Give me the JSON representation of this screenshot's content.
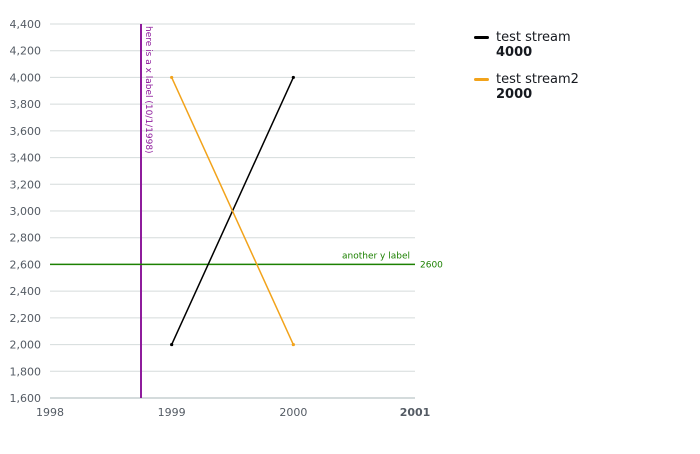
{
  "chart_data": {
    "type": "line",
    "title": "",
    "xlabel": "",
    "ylabel": "",
    "xlim": [
      1998,
      2001
    ],
    "ylim": [
      1600,
      4400
    ],
    "x_ticks": [
      1998,
      1999,
      2000,
      2001
    ],
    "x_tick_labels": [
      "1998",
      "1999",
      "2000",
      "2001"
    ],
    "y_ticks": [
      1600,
      1800,
      2000,
      2200,
      2400,
      2600,
      2800,
      3000,
      3200,
      3400,
      3600,
      3800,
      4000,
      4200,
      4400
    ],
    "y_tick_labels": [
      "1,600",
      "1,800",
      "2,000",
      "2,200",
      "2,400",
      "2,600",
      "2,800",
      "3,000",
      "3,200",
      "3,400",
      "3,600",
      "3,800",
      "4,000",
      "4,200",
      "4,400"
    ],
    "grid": true,
    "legend_position": "right",
    "series": [
      {
        "name": "test stream",
        "color": "#000000",
        "x": [
          1999,
          2000
        ],
        "values": [
          2000,
          4000
        ],
        "legend_value": "4000"
      },
      {
        "name": "test stream2",
        "color": "#f2a31b",
        "x": [
          1999,
          2000
        ],
        "values": [
          4000,
          2000
        ],
        "legend_value": "2000"
      }
    ],
    "annotations": [
      {
        "type": "vertical",
        "x": "1998-10-01",
        "label": "here is a x label (10/1/1998)",
        "color": "#8e1c9c"
      },
      {
        "type": "horizontal",
        "y": 2600,
        "label": "another y label",
        "value_label": "2600",
        "color": "#1d8102"
      }
    ]
  }
}
